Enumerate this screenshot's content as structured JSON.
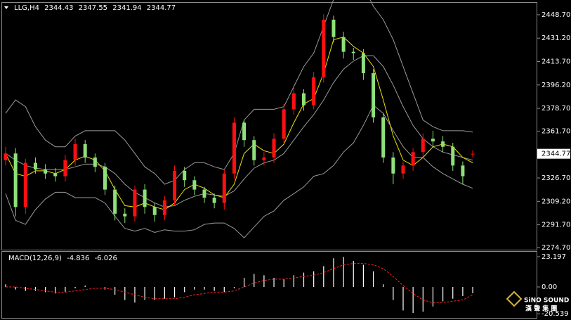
{
  "chart_data": [
    {
      "type": "candlestick",
      "title": "LLG,H4",
      "open": [
        2340,
        2345,
        2305,
        2338,
        2333,
        2330,
        2328,
        2340,
        2352,
        2342,
        2335,
        2318,
        2300,
        2298,
        2318,
        2305,
        2299,
        2310,
        2332,
        2325,
        2318,
        2312,
        2308,
        2330,
        2368,
        2355,
        2340,
        2342,
        2356,
        2378,
        2390,
        2381,
        2402,
        2445,
        2432,
        2421,
        2420,
        2405,
        2372,
        2342,
        2330,
        2336,
        2346,
        2356,
        2354,
        2350,
        2336,
        2344.43
      ],
      "high": [
        2350,
        2349,
        2341,
        2342,
        2337,
        2334,
        2344,
        2356,
        2355,
        2345,
        2338,
        2321,
        2304,
        2321,
        2322,
        2308,
        2313,
        2336,
        2335,
        2328,
        2320,
        2315,
        2333,
        2372,
        2370,
        2358,
        2346,
        2360,
        2382,
        2394,
        2393,
        2406,
        2449,
        2448,
        2436,
        2424,
        2423,
        2408,
        2375,
        2346,
        2339,
        2349,
        2360,
        2362,
        2358,
        2353,
        2339,
        2347.55
      ],
      "low": [
        2336,
        2298,
        2300,
        2330,
        2326,
        2324,
        2324,
        2336,
        2338,
        2331,
        2314,
        2295,
        2293,
        2294,
        2300,
        2294,
        2295,
        2306,
        2320,
        2314,
        2308,
        2304,
        2303,
        2326,
        2350,
        2336,
        2336,
        2338,
        2352,
        2374,
        2377,
        2378,
        2398,
        2428,
        2416,
        2415,
        2400,
        2368,
        2338,
        2322,
        2326,
        2332,
        2342,
        2350,
        2346,
        2332,
        2322,
        2341.94
      ],
      "close": [
        2345,
        2305,
        2338,
        2333,
        2330,
        2328,
        2340,
        2352,
        2342,
        2335,
        2318,
        2300,
        2298,
        2318,
        2305,
        2299,
        2310,
        2332,
        2325,
        2318,
        2312,
        2308,
        2330,
        2368,
        2355,
        2340,
        2342,
        2356,
        2378,
        2390,
        2381,
        2402,
        2445,
        2432,
        2421,
        2420,
        2405,
        2372,
        2342,
        2330,
        2336,
        2346,
        2356,
        2354,
        2350,
        2336,
        2328,
        2344.77
      ],
      "up_color": "#ff1010",
      "down_color": "#8ee07a",
      "overlays": [
        {
          "color": "#9a9a9a",
          "values": [
            2375,
            2385,
            2380,
            2365,
            2355,
            2350,
            2350,
            2358,
            2362,
            2362,
            2362,
            2362,
            2355,
            2345,
            2335,
            2330,
            2322,
            2325,
            2333,
            2338,
            2338,
            2335,
            2333,
            2345,
            2370,
            2378,
            2378,
            2378,
            2380,
            2395,
            2410,
            2420,
            2440,
            2460,
            2470,
            2475,
            2470,
            2455,
            2445,
            2430,
            2410,
            2390,
            2370,
            2365,
            2362,
            2362,
            2362,
            2361
          ]
        },
        {
          "color": "#9a9a9a",
          "values": [
            2345,
            2340,
            2336,
            2334,
            2333,
            2333,
            2333,
            2335,
            2337,
            2337,
            2335,
            2330,
            2322,
            2316,
            2312,
            2308,
            2305,
            2306,
            2310,
            2313,
            2315,
            2314,
            2313,
            2317,
            2326,
            2334,
            2338,
            2340,
            2345,
            2355,
            2365,
            2374,
            2385,
            2398,
            2408,
            2414,
            2418,
            2418,
            2410,
            2396,
            2380,
            2366,
            2356,
            2350,
            2346,
            2344,
            2342,
            2340
          ]
        },
        {
          "color": "#9a9a9a",
          "values": [
            2315,
            2295,
            2292,
            2303,
            2311,
            2316,
            2316,
            2312,
            2312,
            2312,
            2308,
            2298,
            2289,
            2287,
            2289,
            2286,
            2288,
            2287,
            2287,
            2288,
            2292,
            2293,
            2293,
            2289,
            2282,
            2290,
            2298,
            2302,
            2310,
            2315,
            2320,
            2328,
            2330,
            2336,
            2346,
            2353,
            2366,
            2381,
            2375,
            2362,
            2350,
            2342,
            2342,
            2335,
            2330,
            2326,
            2322,
            2319
          ]
        },
        {
          "color": "#f0e000",
          "values": [
            2345,
            2330,
            2328,
            2332,
            2332,
            2330,
            2333,
            2340,
            2343,
            2340,
            2332,
            2318,
            2306,
            2305,
            2308,
            2305,
            2303,
            2308,
            2318,
            2322,
            2319,
            2314,
            2312,
            2322,
            2345,
            2352,
            2347,
            2345,
            2352,
            2368,
            2382,
            2386,
            2405,
            2430,
            2432,
            2425,
            2420,
            2410,
            2385,
            2358,
            2340,
            2336,
            2342,
            2350,
            2352,
            2350,
            2342,
            2338
          ]
        }
      ],
      "ylim": [
        2273.1,
        2457.6
      ],
      "yticks": [
        {
          "value": 2448.7,
          "label": "2448.70"
        },
        {
          "value": 2431.2,
          "label": "2431.20"
        },
        {
          "value": 2413.7,
          "label": "2413.70"
        },
        {
          "value": 2396.2,
          "label": "2396.20"
        },
        {
          "value": 2378.7,
          "label": "2378.70"
        },
        {
          "value": 2361.7,
          "label": "2361.70"
        },
        {
          "value": 2326.7,
          "label": "2326.70"
        },
        {
          "value": 2309.2,
          "label": "2309.20"
        },
        {
          "value": 2291.7,
          "label": "2291.70"
        },
        {
          "value": 2274.7,
          "label": "2274.70"
        }
      ],
      "last": 2344.77
    },
    {
      "type": "macd",
      "title": "MACD(12,26,9)",
      "histogram": {
        "color": "#ffffff",
        "values": [
          2,
          -2,
          -3,
          -3,
          -4,
          -5,
          -4,
          -1,
          1,
          0,
          -2,
          -6,
          -10,
          -12,
          -10,
          -10,
          -9,
          -8,
          -4,
          -2,
          -2,
          -3,
          -4,
          -1,
          7,
          10,
          9,
          7,
          6,
          9,
          11,
          12,
          16,
          22,
          23,
          20,
          17,
          12,
          2,
          -10,
          -18,
          -20,
          -19,
          -15,
          -11,
          -9,
          -7,
          -4.836
        ]
      },
      "signal": {
        "color": "#ff2020",
        "values": [
          0,
          0,
          -1,
          -2,
          -3,
          -4,
          -4,
          -3,
          -2,
          -1,
          -1,
          -2,
          -4,
          -6,
          -8,
          -9,
          -9,
          -9,
          -8,
          -6,
          -5,
          -4,
          -4,
          -3,
          0,
          3,
          5,
          6,
          6,
          7,
          8,
          9,
          11,
          14,
          17,
          18,
          18,
          17,
          14,
          8,
          1,
          -5,
          -10,
          -12,
          -12,
          -11,
          -10,
          -6.026
        ]
      },
      "ylim": [
        -23.73,
        26.97
      ],
      "yticks": [
        23.197,
        {
          "value": 0,
          "label": "0.00"
        },
        -20.539
      ]
    }
  ],
  "watermark": {
    "brand": "SiNO SOUND",
    "name": "漢 聲 集 團"
  }
}
